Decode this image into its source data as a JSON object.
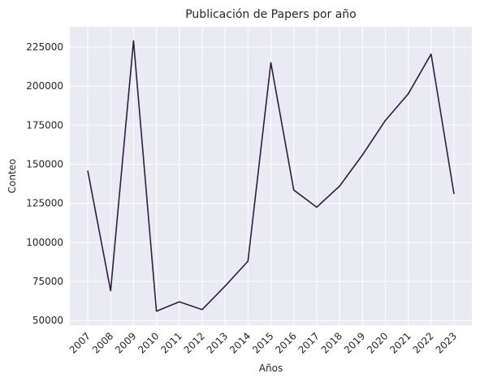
{
  "chart_data": {
    "type": "line",
    "title": "Publicación de Papers por año",
    "xlabel": "Años",
    "ylabel": "Conteo",
    "x": [
      "2007",
      "2008",
      "2009",
      "2010",
      "2011",
      "2012",
      "2013",
      "2014",
      "2015",
      "2016",
      "2017",
      "2018",
      "2019",
      "2020",
      "2021",
      "2022",
      "2023"
    ],
    "series": [
      {
        "values": [
          146000,
          69000,
          229000,
          56000,
          62000,
          57000,
          72000,
          88000,
          215000,
          133500,
          122500,
          136000,
          156000,
          178000,
          195000,
          220500,
          131000
        ]
      }
    ],
    "yticks": [
      50000,
      75000,
      100000,
      125000,
      150000,
      175000,
      200000,
      225000
    ],
    "ylim": [
      47000,
      238000
    ],
    "grid": true,
    "style": {
      "background": "#eaeaf2",
      "grid_color": "#ffffff",
      "line_color": "#2d1e3e"
    }
  }
}
